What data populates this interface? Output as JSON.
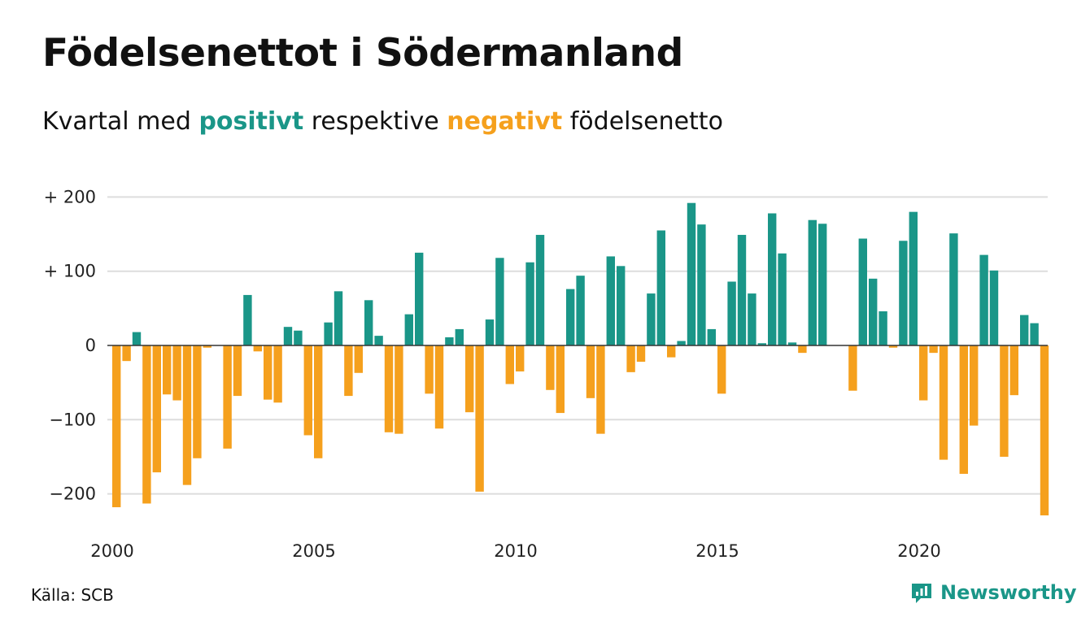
{
  "title": "Födelsenettot i Södermanland",
  "subtitle": {
    "prefix": "Kvartal med",
    "positive_word": "positivt",
    "middle": "respektive",
    "negative_word": "negativt",
    "suffix": "födelsenetto"
  },
  "source": "Källa: SCB",
  "brand": {
    "name": "Newsworthy",
    "icon": "newsworthy-logo-icon"
  },
  "colors": {
    "positive": "#1a9688",
    "negative": "#f5a01d",
    "grid": "#dddddd",
    "zero_line": "#333333",
    "brand": "#1a9688"
  },
  "chart_data": {
    "type": "bar",
    "title": "Födelsenettot i Södermanland",
    "subtitle": "Kvartal med positivt respektive negativt födelsenetto",
    "xlabel": "",
    "ylabel": "",
    "ylim": [
      -250,
      200
    ],
    "grid": true,
    "y_ticks": [
      {
        "value": 200,
        "label": "+ 200"
      },
      {
        "value": 100,
        "label": "+ 100"
      },
      {
        "value": 0,
        "label": "0"
      },
      {
        "value": -100,
        "label": "−100"
      },
      {
        "value": -200,
        "label": "−200"
      }
    ],
    "x_ticks": [
      {
        "year": 2000,
        "label": "2000"
      },
      {
        "year": 2005,
        "label": "2005"
      },
      {
        "year": 2010,
        "label": "2010"
      },
      {
        "year": 2015,
        "label": "2015"
      },
      {
        "year": 2020,
        "label": "2020"
      }
    ],
    "categories": [
      "2000 K1",
      "2000 K2",
      "2000 K3",
      "2000 K4",
      "2001 K1",
      "2001 K2",
      "2001 K3",
      "2001 K4",
      "2002 K1",
      "2002 K2",
      "2002 K3",
      "2002 K4",
      "2003 K1",
      "2003 K2",
      "2003 K3",
      "2003 K4",
      "2004 K1",
      "2004 K2",
      "2004 K3",
      "2004 K4",
      "2005 K1",
      "2005 K2",
      "2005 K3",
      "2005 K4",
      "2006 K1",
      "2006 K2",
      "2006 K3",
      "2006 K4",
      "2007 K1",
      "2007 K2",
      "2007 K3",
      "2007 K4",
      "2008 K1",
      "2008 K2",
      "2008 K3",
      "2008 K4",
      "2009 K1",
      "2009 K2",
      "2009 K3",
      "2009 K4",
      "2010 K1",
      "2010 K2",
      "2010 K3",
      "2010 K4",
      "2011 K1",
      "2011 K2",
      "2011 K3",
      "2011 K4",
      "2012 K1",
      "2012 K2",
      "2012 K3",
      "2012 K4",
      "2013 K1",
      "2013 K2",
      "2013 K3",
      "2013 K4",
      "2014 K1",
      "2014 K2",
      "2014 K3",
      "2014 K4",
      "2015 K1",
      "2015 K2",
      "2015 K3",
      "2015 K4",
      "2016 K1",
      "2016 K2",
      "2016 K3",
      "2016 K4",
      "2017 K1",
      "2017 K2",
      "2017 K3",
      "2017 K4",
      "2018 K1",
      "2018 K2",
      "2018 K3",
      "2018 K4",
      "2019 K1",
      "2019 K2",
      "2019 K3",
      "2019 K4",
      "2020 K1",
      "2020 K2",
      "2020 K3",
      "2020 K4",
      "2021 K1",
      "2021 K2",
      "2021 K3",
      "2021 K4",
      "2022 K1",
      "2022 K2",
      "2022 K3",
      "2022 K4",
      "2023 K1"
    ],
    "values": [
      -218,
      -21,
      18,
      -213,
      -171,
      -66,
      -74,
      -188,
      -152,
      -3,
      0,
      -139,
      -68,
      68,
      -8,
      -73,
      -77,
      25,
      20,
      -121,
      -152,
      31,
      73,
      -68,
      -37,
      61,
      13,
      -117,
      -119,
      42,
      125,
      -65,
      -112,
      11,
      22,
      -90,
      -197,
      35,
      118,
      -52,
      -35,
      112,
      149,
      -60,
      -91,
      76,
      94,
      -71,
      -119,
      120,
      107,
      -36,
      -22,
      70,
      155,
      -16,
      6,
      192,
      163,
      22,
      -65,
      86,
      149,
      70,
      3,
      178,
      124,
      4,
      -10,
      169,
      164,
      0,
      0,
      -61,
      144,
      90,
      46,
      -3,
      141,
      180,
      -74,
      -10,
      -154,
      151,
      -173,
      -108,
      122,
      101,
      -150,
      -67,
      41,
      30,
      -229
    ]
  }
}
